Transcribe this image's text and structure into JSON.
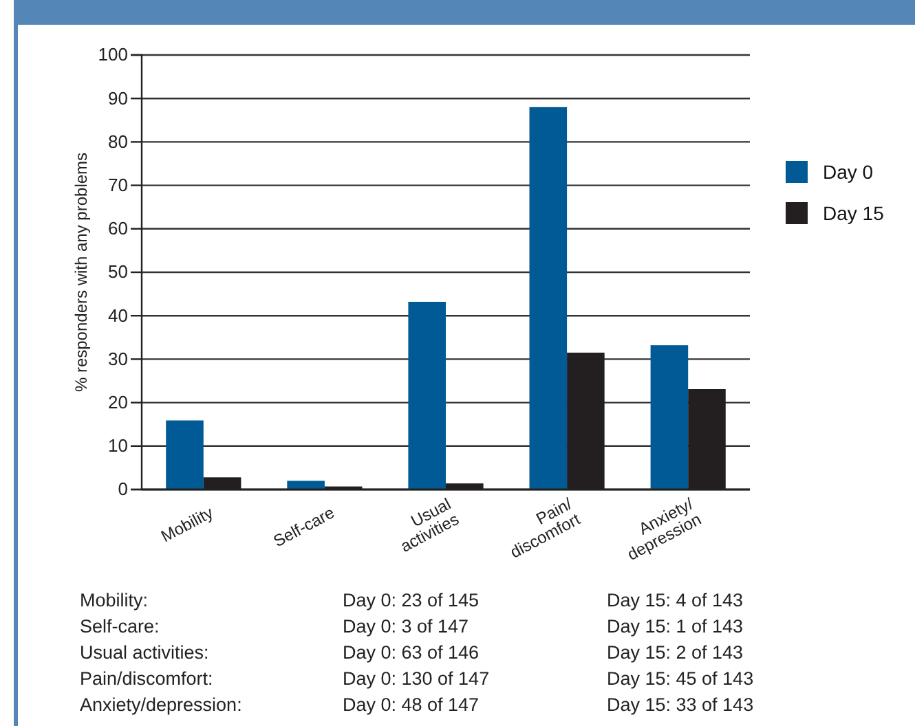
{
  "chart_data": {
    "type": "bar",
    "ylabel": "% responders with any problems",
    "categories": [
      "Mobility",
      "Self-care",
      "Usual activities",
      "Pain/discomfort",
      "Anxiety/depression"
    ],
    "series": [
      {
        "name": "Day 0",
        "color": "#005a96",
        "values": [
          15.9,
          2,
          43.2,
          88,
          33.2
        ]
      },
      {
        "name": "Day 15",
        "color": "#231f20",
        "values": [
          2.8,
          0.7,
          1.4,
          31.5,
          23.1
        ]
      }
    ],
    "ylim": [
      0,
      100
    ],
    "yticks": [
      0,
      10,
      20,
      30,
      40,
      50,
      60,
      70,
      80,
      90,
      100
    ],
    "grid": "y",
    "legend": "right",
    "annotations": [
      "Mobility:",
      "Day 0: 23 of 145",
      "Day 15: 4 of 143",
      "Self-care:",
      "Day 0: 3 of 147",
      "Day 15: 1 of 143",
      "Usual activities:",
      "Day 0: 63 of 146",
      "Day 15: 2 of 143",
      "Pain/discomfort:",
      "Day 0: 130 of 147",
      "Day 15: 45 of 143",
      "Anxiety/depression:",
      "Day 0: 48 of 147",
      "Day 15: 33 of 143"
    ]
  }
}
